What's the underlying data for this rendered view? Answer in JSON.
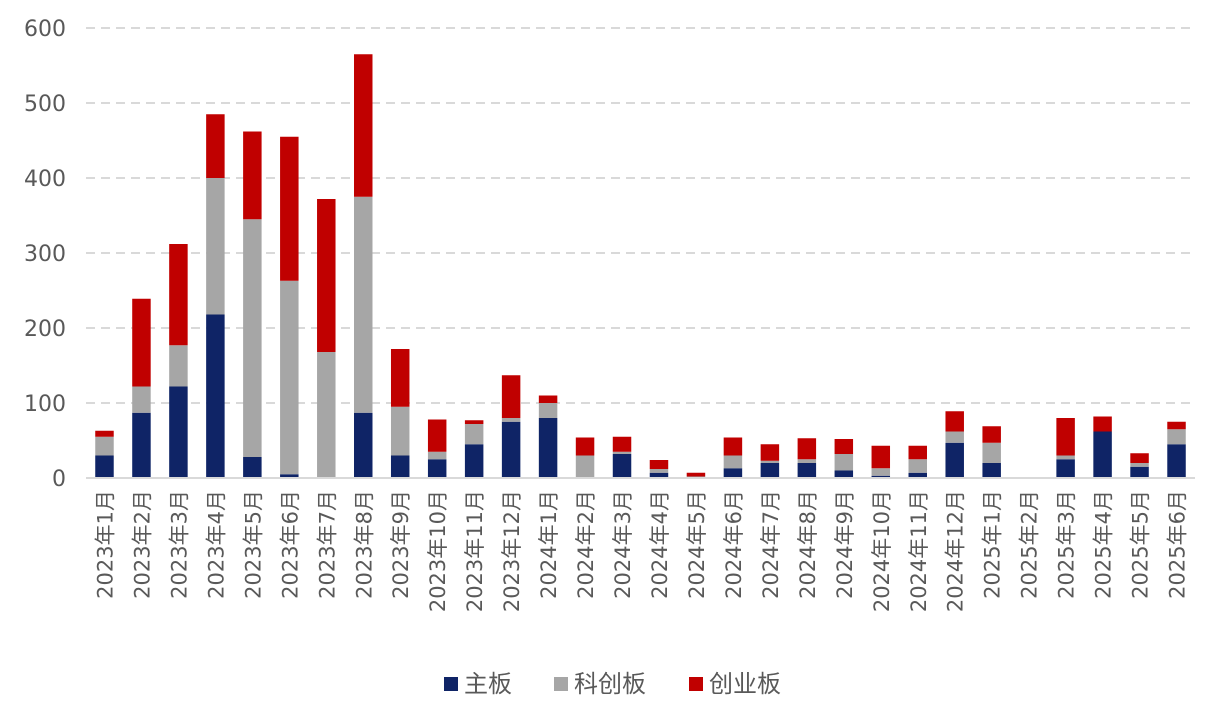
{
  "chart_data": {
    "type": "bar",
    "stacked": true,
    "ylim": [
      0,
      600
    ],
    "yticks": [
      "0",
      "100",
      "200",
      "300",
      "400",
      "500",
      "600"
    ],
    "grid": true,
    "legend_position": "bottom",
    "categories": [
      "2023年1月",
      "2023年2月",
      "2023年3月",
      "2023年4月",
      "2023年5月",
      "2023年6月",
      "2023年7月",
      "2023年8月",
      "2023年9月",
      "2023年10月",
      "2023年11月",
      "2023年12月",
      "2024年1月",
      "2024年2月",
      "2024年3月",
      "2024年4月",
      "2024年5月",
      "2024年6月",
      "2024年7月",
      "2024年8月",
      "2024年9月",
      "2024年10月",
      "2024年11月",
      "2024年12月",
      "2025年1月",
      "2025年2月",
      "2025年3月",
      "2025年4月",
      "2025年5月",
      "2025年6月"
    ],
    "series": [
      {
        "name": "主板",
        "color": "#0f2466",
        "values": [
          30,
          87,
          122,
          218,
          28,
          5,
          0,
          87,
          30,
          25,
          45,
          75,
          80,
          0,
          32,
          7,
          0,
          13,
          20,
          20,
          10,
          3,
          7,
          47,
          20,
          0,
          25,
          62,
          15,
          45
        ]
      },
      {
        "name": "科创板",
        "color": "#a6a6a6",
        "values": [
          25,
          35,
          55,
          182,
          317,
          258,
          168,
          288,
          65,
          10,
          27,
          5,
          20,
          30,
          3,
          5,
          2,
          17,
          3,
          5,
          22,
          10,
          18,
          15,
          27,
          0,
          5,
          0,
          5,
          20
        ]
      },
      {
        "name": "创业板",
        "color": "#c00000",
        "values": [
          8,
          117,
          135,
          85,
          117,
          192,
          204,
          190,
          77,
          43,
          5,
          57,
          10,
          24,
          20,
          12,
          5,
          24,
          22,
          28,
          20,
          30,
          18,
          27,
          22,
          0,
          50,
          20,
          13,
          10
        ]
      }
    ]
  }
}
